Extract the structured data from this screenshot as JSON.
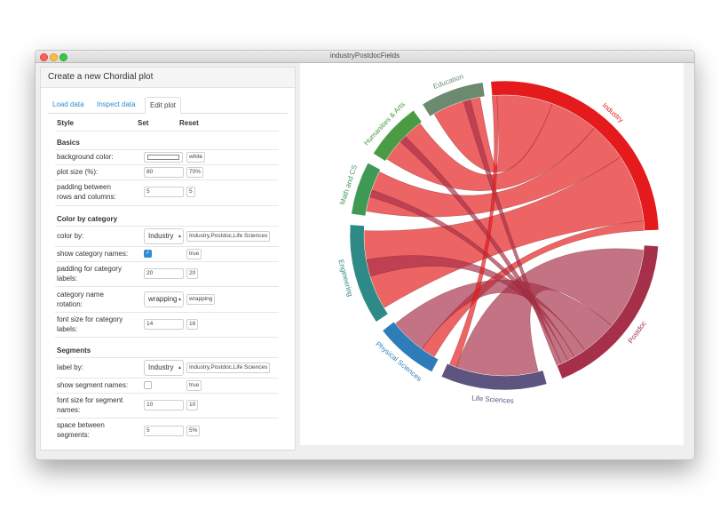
{
  "window": {
    "title": "industryPostdocFields"
  },
  "panel": {
    "title": "Create a new Chordial plot",
    "tabs": [
      {
        "label": "Load data",
        "active": false
      },
      {
        "label": "Inspect data",
        "active": false
      },
      {
        "label": "Edit plot",
        "active": true
      }
    ],
    "headers": {
      "style": "Style",
      "set": "Set",
      "reset": "Reset"
    },
    "sections": {
      "basics": "Basics",
      "color_by_category": "Color by category",
      "segments": "Segments"
    },
    "rows": {
      "background_color": {
        "label": "background color:",
        "reset": "white"
      },
      "plot_size": {
        "label": "plot size (%):",
        "value": "80",
        "reset": "70%"
      },
      "padding_rc": {
        "label1": "padding between",
        "label2": "rows and columns:",
        "value": "5",
        "reset": "5"
      },
      "color_by": {
        "label": "color by:",
        "value": "Industry",
        "reset": "Industry,Postdoc,Life Sciences"
      },
      "show_category_names": {
        "label": "show category names:",
        "checked": true,
        "reset": "true"
      },
      "padding_cat": {
        "label1": "padding for category",
        "label2": "labels:",
        "value": "20",
        "reset": "20"
      },
      "cat_rotation": {
        "label1": "category name",
        "label2": "rotation:",
        "value": "wrapping",
        "reset": "wrapping"
      },
      "font_cat": {
        "label1": "font size for category",
        "label2": "labels:",
        "value": "14",
        "reset": "16"
      },
      "label_by": {
        "label": "label by:",
        "value": "Industry",
        "reset": "Industry,Postdoc,Life Sciences"
      },
      "show_segment_names": {
        "label": "show segment names:",
        "checked": false,
        "reset": "true"
      },
      "font_seg": {
        "label1": "font size for segment",
        "label2": "names:",
        "value": "10",
        "reset": "10"
      },
      "space_seg": {
        "label1": "space between",
        "label2": "segments:",
        "value": "5",
        "reset": "5%"
      }
    }
  },
  "chart_data": {
    "type": "chord",
    "groups": [
      {
        "name": "Industry",
        "color": "#e41a1c",
        "start": -5,
        "end": 88
      },
      {
        "name": "Postdoc",
        "color": "#a6304a",
        "start": 94,
        "end": 158
      },
      {
        "name": "Life Sciences",
        "color": "#5e5480",
        "start": 164,
        "end": 204
      },
      {
        "name": "Physical Sciences",
        "color": "#2f7db8",
        "start": 208,
        "end": 232
      },
      {
        "name": "Engineering",
        "color": "#2e8a86",
        "start": 236,
        "end": 274
      },
      {
        "name": "Math and CS",
        "color": "#3f9a56",
        "start": 278,
        "end": 298
      },
      {
        "name": "Humanities & Arts",
        "color": "#4b9b44",
        "start": 302,
        "end": 324
      },
      {
        "name": "Education",
        "color": "#6c8a70",
        "start": 328,
        "end": 352
      }
    ],
    "chords": [
      {
        "source": 0,
        "s": [
          -3,
          20
        ],
        "t": [
          330,
          350
        ],
        "color": "#e41a1c"
      },
      {
        "source": 0,
        "s": [
          20,
          40
        ],
        "t": [
          303,
          323
        ],
        "color": "#e41a1c"
      },
      {
        "source": 0,
        "s": [
          40,
          56
        ],
        "t": [
          280,
          297
        ],
        "color": "#e41a1c"
      },
      {
        "source": 0,
        "s": [
          56,
          84
        ],
        "t": [
          239,
          272
        ],
        "color": "#e41a1c"
      },
      {
        "source": 0,
        "s": [
          84,
          88
        ],
        "t": [
          210,
          216
        ],
        "color": "#e41a1c"
      },
      {
        "source": 1,
        "s": [
          96,
          130
        ],
        "t": [
          166,
          200
        ],
        "color": "#a6304a"
      },
      {
        "source": 1,
        "s": [
          130,
          145
        ],
        "t": [
          216,
          231
        ],
        "color": "#a6304a"
      },
      {
        "source": 1,
        "s": [
          145,
          150
        ],
        "t": [
          253,
          260
        ],
        "color": "#a6304a"
      },
      {
        "source": 1,
        "s": [
          150,
          153
        ],
        "t": [
          286,
          289
        ],
        "color": "#a6304a"
      },
      {
        "source": 1,
        "s": [
          153,
          156
        ],
        "t": [
          312,
          315
        ],
        "color": "#a6304a"
      },
      {
        "source": 1,
        "s": [
          156,
          158
        ],
        "t": [
          343,
          346
        ],
        "color": "#a6304a"
      },
      {
        "source": 0,
        "s": [
          -5,
          -3
        ],
        "t": [
          200,
          203
        ],
        "color": "#e41a1c"
      }
    ]
  }
}
